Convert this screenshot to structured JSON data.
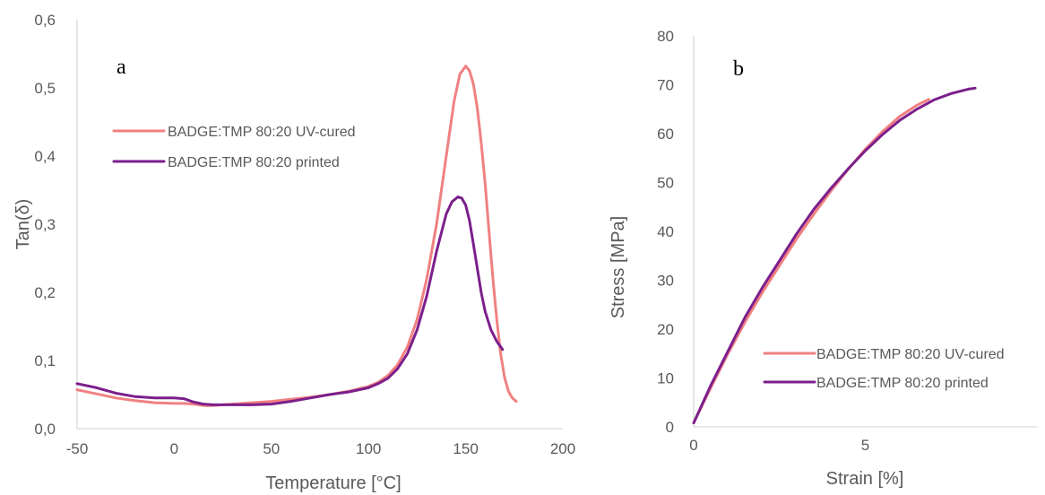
{
  "chart_data": [
    {
      "type": "line",
      "panel_label": "a",
      "title": "",
      "xlabel": "Temperature [°C]",
      "ylabel": "Tan(δ)",
      "xlim": [
        -50,
        200
      ],
      "ylim": [
        0,
        0.6
      ],
      "x_ticks": [
        -50,
        0,
        50,
        100,
        150,
        200
      ],
      "x_tick_labels": [
        "-50",
        "0",
        "50",
        "100",
        "150",
        "200"
      ],
      "y_ticks": [
        0,
        0.1,
        0.2,
        0.3,
        0.4,
        0.5,
        0.6
      ],
      "y_tick_labels": [
        "0,0",
        "0,1",
        "0,2",
        "0,3",
        "0,4",
        "0,5",
        "0,6"
      ],
      "grid": false,
      "legend_position": "upper-left",
      "series": [
        {
          "name": "BADGE:TMP 80:20 UV-cured",
          "color": "#f08080",
          "x": [
            -50,
            -40,
            -30,
            -20,
            -10,
            0,
            5,
            10,
            15,
            20,
            30,
            40,
            50,
            60,
            70,
            80,
            90,
            100,
            105,
            110,
            115,
            120,
            125,
            130,
            135,
            138,
            141,
            144,
            147,
            150,
            152,
            154,
            156,
            158,
            160,
            162,
            164,
            166,
            168,
            170,
            172,
            174,
            176
          ],
          "y": [
            0.057,
            0.051,
            0.045,
            0.041,
            0.038,
            0.037,
            0.037,
            0.036,
            0.034,
            0.034,
            0.036,
            0.038,
            0.04,
            0.043,
            0.046,
            0.05,
            0.055,
            0.062,
            0.068,
            0.078,
            0.094,
            0.12,
            0.16,
            0.22,
            0.3,
            0.36,
            0.42,
            0.48,
            0.52,
            0.532,
            0.525,
            0.505,
            0.47,
            0.42,
            0.36,
            0.29,
            0.22,
            0.16,
            0.11,
            0.075,
            0.055,
            0.045,
            0.04
          ]
        },
        {
          "name": "BADGE:TMP 80:20 printed",
          "color": "#7b1f8c",
          "x": [
            -50,
            -40,
            -30,
            -20,
            -10,
            0,
            5,
            10,
            15,
            20,
            30,
            40,
            50,
            60,
            70,
            80,
            90,
            100,
            105,
            110,
            115,
            120,
            125,
            130,
            135,
            140,
            143,
            146,
            148,
            150,
            152,
            154,
            156,
            158,
            160,
            163,
            166,
            169
          ],
          "y": [
            0.066,
            0.06,
            0.052,
            0.047,
            0.045,
            0.045,
            0.044,
            0.039,
            0.036,
            0.035,
            0.035,
            0.035,
            0.036,
            0.04,
            0.045,
            0.05,
            0.054,
            0.06,
            0.066,
            0.074,
            0.088,
            0.11,
            0.145,
            0.195,
            0.26,
            0.315,
            0.333,
            0.34,
            0.338,
            0.328,
            0.305,
            0.27,
            0.235,
            0.2,
            0.172,
            0.145,
            0.128,
            0.116
          ]
        }
      ]
    },
    {
      "type": "line",
      "panel_label": "b",
      "title": "",
      "xlabel": "Strain [%]",
      "ylabel": "Stress [MPa]",
      "xlim": [
        0,
        10
      ],
      "ylim": [
        0,
        80
      ],
      "x_ticks": [
        0,
        5
      ],
      "x_tick_labels": [
        "0",
        "5"
      ],
      "y_ticks": [
        0,
        10,
        20,
        30,
        40,
        50,
        60,
        70,
        80
      ],
      "y_tick_labels": [
        "0",
        "10",
        "20",
        "30",
        "40",
        "50",
        "60",
        "70",
        "80"
      ],
      "grid": false,
      "legend_position": "lower-right",
      "series": [
        {
          "name": "BADGE:TMP 80:20 UV-cured",
          "color": "#f08080",
          "x": [
            0,
            0.5,
            1,
            1.5,
            2,
            2.5,
            3,
            3.5,
            4,
            4.5,
            5,
            5.5,
            6,
            6.5,
            6.85
          ],
          "y": [
            0.8,
            8,
            15,
            21.5,
            27.5,
            33,
            38.5,
            43.5,
            48.3,
            52.7,
            56.8,
            60.4,
            63.5,
            65.8,
            67
          ]
        },
        {
          "name": "BADGE:TMP 80:20 printed",
          "color": "#7b1f8c",
          "x": [
            0,
            0.5,
            1,
            1.5,
            2,
            2.5,
            3,
            3.5,
            4,
            4.5,
            5,
            5.5,
            6,
            6.5,
            7,
            7.5,
            8,
            8.2
          ],
          "y": [
            0.8,
            8.5,
            15.5,
            22.5,
            28.5,
            34,
            39.5,
            44.5,
            48.8,
            52.8,
            56.5,
            59.8,
            62.7,
            65,
            66.9,
            68.2,
            69.1,
            69.3
          ]
        }
      ]
    }
  ]
}
